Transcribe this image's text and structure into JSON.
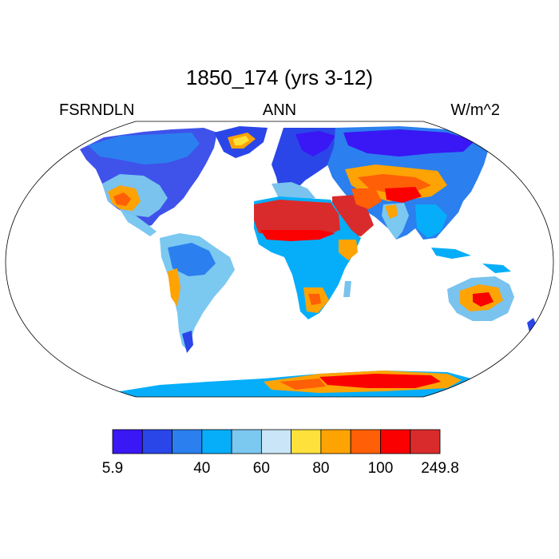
{
  "title": "1850_174 (yrs 3-12)",
  "variable": "FSRNDLN",
  "season": "ANN",
  "units": "W/m^2",
  "colorbar": {
    "colors": [
      "#3a17f5",
      "#2a46e8",
      "#2b7fee",
      "#06aefa",
      "#7bc8f1",
      "#c9e5f7",
      "#ffe13c",
      "#fea304",
      "#ff5f06",
      "#fb0000",
      "#d92b2b"
    ],
    "tick_labels": [
      {
        "boundary": 0,
        "label": "5.9"
      },
      {
        "boundary": 3,
        "label": "40"
      },
      {
        "boundary": 5,
        "label": "60"
      },
      {
        "boundary": 7,
        "label": "80"
      },
      {
        "boundary": 9,
        "label": "100"
      },
      {
        "boundary": 11,
        "label": "249.8"
      }
    ]
  },
  "map_colors": {
    "ocean": "#ffffff",
    "outline": "#000000"
  }
}
